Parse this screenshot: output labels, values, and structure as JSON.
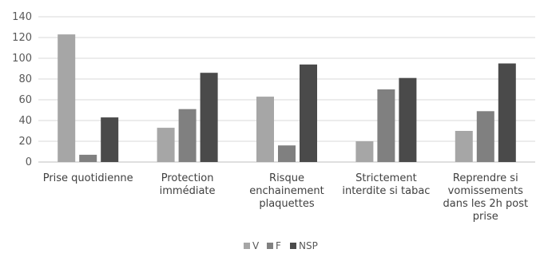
{
  "chart_data": {
    "type": "bar",
    "title": "",
    "xlabel": "",
    "ylabel": "",
    "ylim": [
      0,
      140
    ],
    "yticks": [
      0,
      20,
      40,
      60,
      80,
      100,
      120,
      140
    ],
    "categories": [
      [
        "Prise quotidienne"
      ],
      [
        "Protection",
        "immédiate"
      ],
      [
        "Risque",
        "enchainement",
        "plaquettes"
      ],
      [
        "Strictement",
        "interdite si tabac"
      ],
      [
        "Reprendre si",
        "vomissements",
        "dans les 2h post",
        "prise"
      ]
    ],
    "series": [
      {
        "name": "V",
        "color": "#a6a6a6",
        "values": [
          123,
          33,
          63,
          20,
          30
        ]
      },
      {
        "name": "F",
        "color": "#808080",
        "values": [
          7,
          51,
          16,
          70,
          49
        ]
      },
      {
        "name": "NSP",
        "color": "#4a4a4a",
        "values": [
          43,
          86,
          94,
          81,
          95
        ]
      }
    ],
    "grid": true,
    "legend_position": "bottom"
  }
}
